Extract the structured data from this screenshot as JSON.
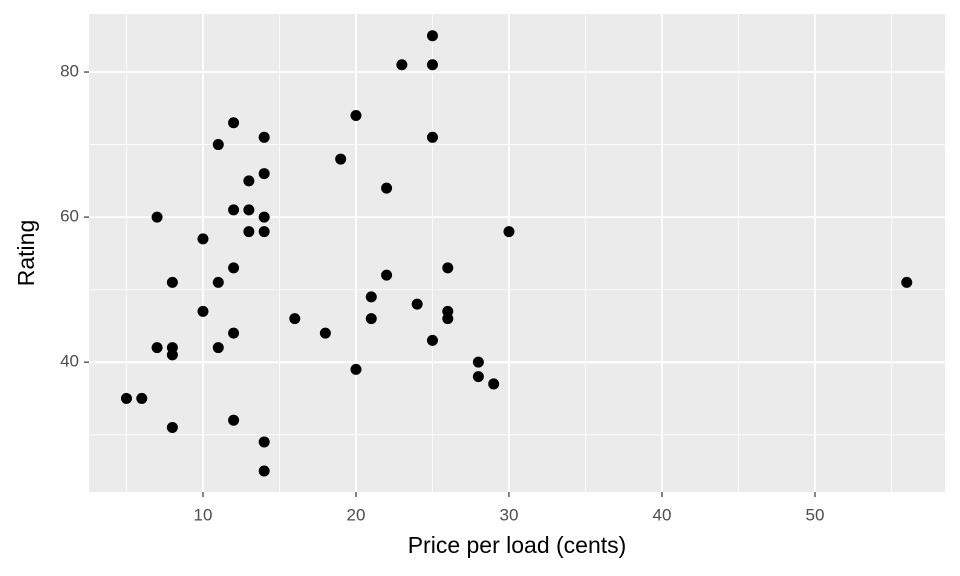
{
  "chart_data": {
    "type": "scatter",
    "x_label": "Price per load (cents)",
    "y_label": "Rating",
    "x": [
      5,
      6,
      7,
      7,
      8,
      8,
      8,
      8,
      10,
      10,
      11,
      11,
      11,
      12,
      12,
      12,
      12,
      12,
      13,
      13,
      13,
      14,
      14,
      14,
      14,
      14,
      14,
      16,
      18,
      19,
      20,
      20,
      21,
      21,
      22,
      22,
      23,
      24,
      25,
      25,
      25,
      25,
      26,
      26,
      26,
      28,
      28,
      29,
      30,
      56
    ],
    "y": [
      35,
      35,
      60,
      42,
      51,
      42,
      41,
      31,
      57,
      47,
      70,
      51,
      42,
      73,
      61,
      53,
      44,
      32,
      65,
      61,
      58,
      71,
      66,
      60,
      58,
      29,
      25,
      46,
      44,
      68,
      74,
      39,
      49,
      46,
      64,
      52,
      81,
      48,
      85,
      81,
      71,
      43,
      53,
      47,
      46,
      40,
      38,
      37,
      58,
      51
    ],
    "color": "#000000",
    "xlim": [
      2.55,
      58.5
    ],
    "ylim": [
      22.1,
      88
    ],
    "xticks": [
      10,
      20,
      30,
      40,
      50
    ],
    "yticks": [
      40,
      60,
      80
    ],
    "x_minor_grid": [
      5,
      15,
      25,
      35,
      45,
      55
    ],
    "y_minor_grid": [
      30,
      50,
      70
    ],
    "grid": true
  }
}
